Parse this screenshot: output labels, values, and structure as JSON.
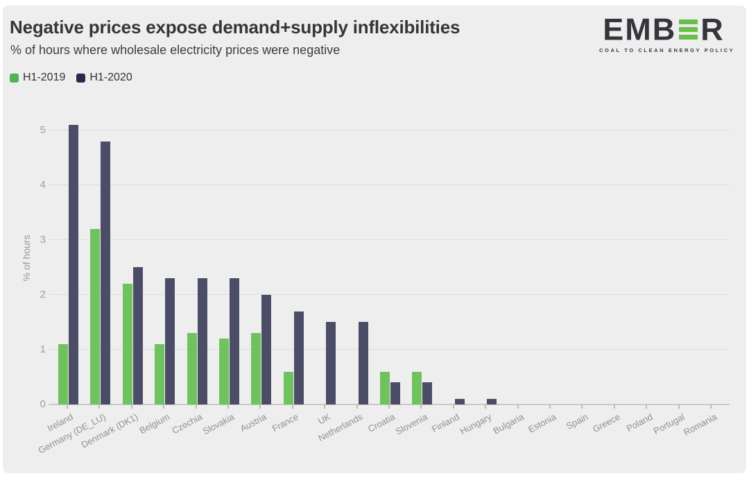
{
  "header": {
    "title": "Negative prices expose demand+supply inflexibilities",
    "subtitle": "% of hours where wholesale electricity prices were negative"
  },
  "logo": {
    "text_left": "EMB",
    "text_right": "R",
    "tagline": "COAL TO CLEAN ENERGY POLICY",
    "bar_color": "#6abf4a",
    "text_color": "#34363c"
  },
  "legend": {
    "items": [
      {
        "label": "H1-2019",
        "swatch_color": "#53b257"
      },
      {
        "label": "H1-2020",
        "swatch_color": "#262b4d"
      }
    ]
  },
  "chart_data": {
    "type": "bar",
    "title": "Negative prices expose demand+supply inflexibilities",
    "subtitle": "% of hours where wholesale electricity prices were negative",
    "categories": [
      "Ireland",
      "Germany (DE_LU)",
      "Denmark (DK1)",
      "Belgium",
      "Czechia",
      "Slovakia",
      "Austria",
      "France",
      "UK",
      "Netherlands",
      "Croatia",
      "Slovenia",
      "Finland",
      "Hungary",
      "Bulgaria",
      "Estonia",
      "Spain",
      "Greece",
      "Poland",
      "Portugal",
      "Romania"
    ],
    "series": [
      {
        "name": "H1-2019",
        "color": "#70c25f",
        "values": [
          1.1,
          3.2,
          2.2,
          1.1,
          1.3,
          1.2,
          1.3,
          0.6,
          0,
          0,
          0.6,
          0.6,
          0,
          0,
          0,
          0,
          0,
          0,
          0,
          0,
          0
        ]
      },
      {
        "name": "H1-2020",
        "color": "#4b4d67",
        "values": [
          5.1,
          4.8,
          2.5,
          2.3,
          2.3,
          2.3,
          2.0,
          1.7,
          1.5,
          1.5,
          0.4,
          0.4,
          0.1,
          0.1,
          0,
          0,
          0,
          0,
          0,
          0,
          0
        ]
      }
    ],
    "xlabel": "",
    "ylabel": "% of hours",
    "yticks": [
      0,
      1,
      2,
      3,
      4,
      5
    ],
    "ylim": [
      0,
      5.35
    ],
    "grid": true,
    "legend_position": "top-left",
    "background_color": "#eeeeef",
    "grid_color": "#dcdcdc"
  }
}
